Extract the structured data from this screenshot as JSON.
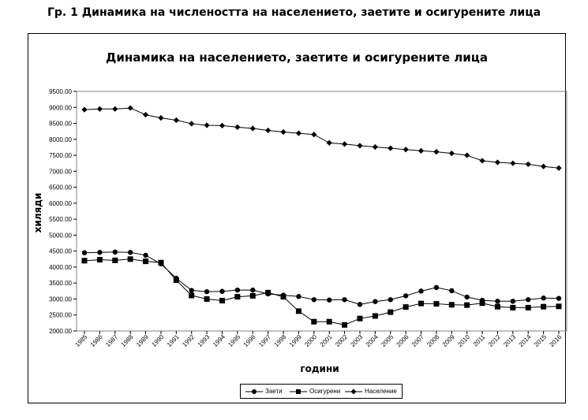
{
  "page_heading": "Гр. 1 Динамика на числеността на населението, заетите и осигурените лица",
  "chart_data": {
    "type": "line",
    "title": "Динамика на населението, заетите и осигурените лица",
    "xlabel": "години",
    "ylabel": "хиляди",
    "ylim": [
      2000,
      9500
    ],
    "y_ticks": [
      "2000.00",
      "2500.00",
      "3000.00",
      "3500.00",
      "4000.00",
      "4500.00",
      "5000.00",
      "5500.00",
      "6000.00",
      "6500.00",
      "7000.00",
      "7500.00",
      "8000.00",
      "8500.00",
      "9000.00",
      "9500.00"
    ],
    "categories": [
      "1985",
      "1986",
      "1987",
      "1988",
      "1989",
      "1990",
      "1991",
      "1992",
      "1993",
      "1994",
      "1995",
      "1996",
      "1997",
      "1998",
      "1999",
      "2000",
      "2001",
      "2002",
      "2003",
      "2004",
      "2005",
      "2006",
      "2007",
      "2008",
      "2009",
      "2010",
      "2011",
      "2012",
      "2013",
      "2014",
      "2015",
      "2016"
    ],
    "grid": false,
    "legend_position": "bottom",
    "series": [
      {
        "name": "Заети",
        "marker": "circle",
        "values": [
          4450,
          4460,
          4470,
          4460,
          4370,
          4100,
          3650,
          3270,
          3230,
          3240,
          3280,
          3280,
          3160,
          3120,
          3080,
          2980,
          2970,
          2980,
          2830,
          2920,
          2980,
          3100,
          3250,
          3360,
          3260,
          3060,
          2960,
          2930,
          2930,
          2980,
          3030,
          3020
        ]
      },
      {
        "name": "Осигурени",
        "marker": "square",
        "values": [
          4200,
          4230,
          4210,
          4250,
          4180,
          4140,
          3590,
          3110,
          3000,
          2950,
          3070,
          3100,
          3200,
          3070,
          2620,
          2290,
          2290,
          2190,
          2390,
          2470,
          2590,
          2750,
          2860,
          2850,
          2820,
          2810,
          2870,
          2760,
          2730,
          2730,
          2760,
          2770
        ]
      },
      {
        "name": "Население",
        "marker": "diamond",
        "values": [
          8930,
          8950,
          8950,
          8980,
          8770,
          8670,
          8600,
          8490,
          8440,
          8430,
          8380,
          8340,
          8280,
          8230,
          8190,
          8150,
          7890,
          7850,
          7800,
          7760,
          7720,
          7680,
          7640,
          7610,
          7560,
          7500,
          7330,
          7280,
          7250,
          7220,
          7150,
          7100
        ]
      }
    ]
  }
}
